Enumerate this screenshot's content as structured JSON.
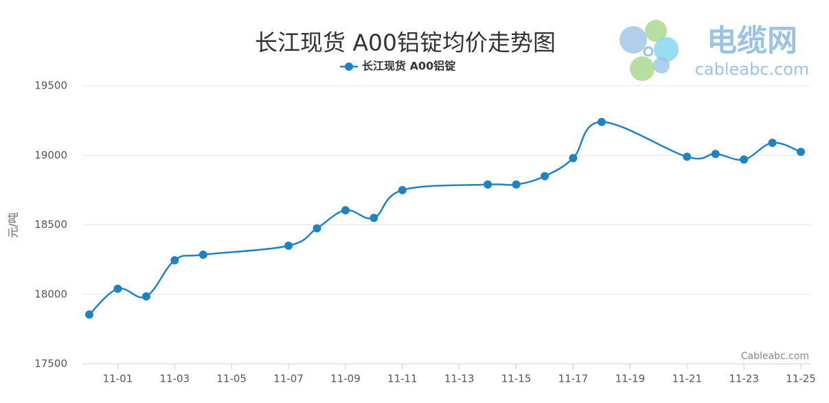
{
  "chart_data": {
    "type": "line",
    "title": "长江现货 A00铝锭均价走势图",
    "y_label": "元/吨",
    "watermark": "Cableabc.com",
    "logo": {
      "name": "电缆网",
      "url": "cableabc.com"
    },
    "x": [
      "10-31",
      "11-01",
      "11-02",
      "11-03",
      "11-04",
      "11-07",
      "11-08",
      "11-09",
      "11-10",
      "11-11",
      "11-14",
      "11-15",
      "11-16",
      "11-17",
      "11-18",
      "11-21",
      "11-22",
      "11-23",
      "11-24",
      "11-25"
    ],
    "xticks": [
      "11-01",
      "11-03",
      "11-05",
      "11-07",
      "11-09",
      "11-11",
      "11-13",
      "11-15",
      "11-17",
      "11-19",
      "11-21",
      "11-23",
      "11-25"
    ],
    "series": [
      {
        "name": "长江现货 A00铝锭",
        "color": "#1f82c4",
        "values": [
          17855,
          18040,
          17985,
          18245,
          18285,
          18350,
          18475,
          18605,
          18550,
          18750,
          18790,
          18790,
          18850,
          18980,
          19240,
          18990,
          19010,
          18970,
          19090,
          19025
        ]
      }
    ],
    "ylim": [
      17500,
      19500
    ],
    "yticks": [
      17500,
      18000,
      18500,
      19000,
      19500
    ],
    "grid": true,
    "legend": "top"
  }
}
